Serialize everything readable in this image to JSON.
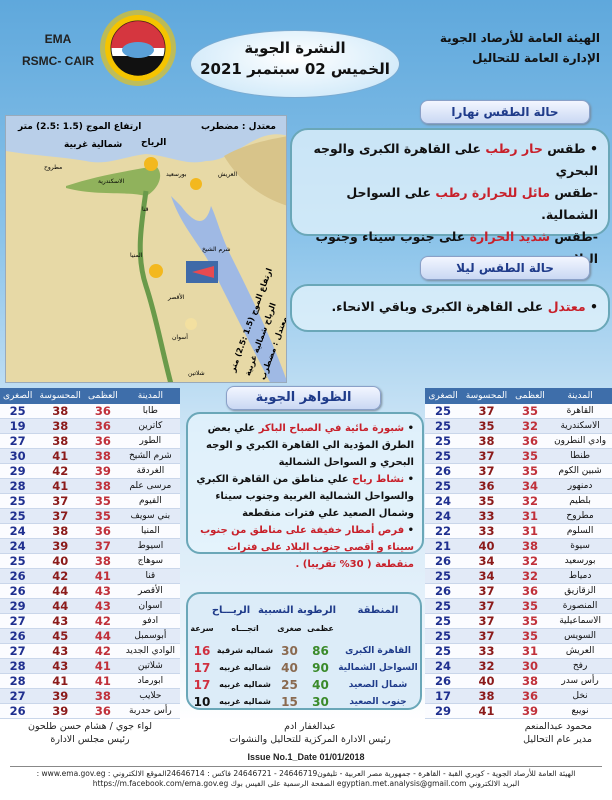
{
  "header": {
    "org_line1": "الهيئة العامة للأرصاد الجوية",
    "org_line2": "الإدارة العامة للتحاليل",
    "title": "النشرة الجوية",
    "date": "الخميس 02 سبتمبر 2021",
    "ema": "EMA",
    "rsmc": "RSMC- CAIR",
    "logo": "EMA"
  },
  "map": {
    "med_sea_state": "معتدل : مضطرب",
    "med_wave": "ارتفاع الموج (1.5 :2.5) متر",
    "med_wind_label": "الرياح",
    "med_wind_dir": "شمالية غربية",
    "red_sea_state": "معتدل : مضطرب",
    "red_sea_wind": "الرياح شمالية غربية",
    "red_sea_wave": "ارتفاع الموج (1.5 :2.5) متر",
    "cities": [
      "مطروح",
      "الاسكندرية",
      "بورسعيد",
      "العريش",
      "قنا",
      "المنيا",
      "الأقصر",
      "أسوان",
      "شرم الشيخ",
      "شلاتين"
    ]
  },
  "day": {
    "title": "حالة الطقس نهارا",
    "items": [
      {
        "pre": "• طقس ",
        "hl": "حار رطب",
        "post": " على القاهرة الكبرى والوجه البحري"
      },
      {
        "pre": "-طقس ",
        "hl": "مائل للحرارة رطب",
        "post": " على السواحل الشمالية."
      },
      {
        "pre": "-طقس ",
        "hl": "شديد الحرارة",
        "post": " على جنوب سيناء وجنوب البلاد."
      }
    ]
  },
  "night": {
    "title": "حالة الطقس ليلا",
    "items": [
      {
        "pre": "• ",
        "hl": "معتدل",
        "post": " على القاهرة الكبرى وباقي الانحاء."
      }
    ]
  },
  "phenomena": {
    "title": "الظواهر الجوية",
    "items": [
      {
        "pre": "• ",
        "hl": "شبورة مائية  في الصباح الباكر",
        "post": " علي بعض الطرق المؤدية الي القاهرة الكبري و الوجه البحري و السواحل الشمالية"
      },
      {
        "pre": "• ",
        "hl": "نشاط رياح",
        "post": " علي مناطق من القاهرة الكبري والسواحل الشمالية الغربية وجنوب سيناء وشمال الصعيد علي فترات منقطعة"
      },
      {
        "pre": "• ",
        "hl": "فرص أمطار خفيفة على مناطق من جنوب سيناء و أقصى جنوب البلاد على فترات منقطعة ( 30% تقريبا) .",
        "post": ""
      }
    ]
  },
  "table_headers": {
    "city": "المدينة",
    "max": "العظمى",
    "feels": "المحسوسة",
    "min": "الصغرى"
  },
  "left_table": [
    [
      "طابا",
      36,
      38,
      25
    ],
    [
      "كاترين",
      36,
      38,
      19
    ],
    [
      "الطور",
      36,
      38,
      27
    ],
    [
      "شرم الشيخ",
      38,
      41,
      30
    ],
    [
      "الغردقة",
      39,
      42,
      29
    ],
    [
      "مرسى علم",
      38,
      41,
      28
    ],
    [
      "الفيوم",
      35,
      37,
      25
    ],
    [
      "بني سويف",
      35,
      37,
      25
    ],
    [
      "المنيا",
      36,
      38,
      24
    ],
    [
      "اسيوط",
      37,
      39,
      24
    ],
    [
      "سوهاج",
      38,
      40,
      25
    ],
    [
      "قنا",
      41,
      42,
      26
    ],
    [
      "الأقصر",
      43,
      44,
      26
    ],
    [
      "اسوان",
      43,
      44,
      29
    ],
    [
      "ادفو",
      42,
      43,
      27
    ],
    [
      "أبوسمبل",
      44,
      45,
      26
    ],
    [
      "الوادي الجديد",
      42,
      43,
      27
    ],
    [
      "شلاتين",
      41,
      43,
      28
    ],
    [
      "ابورماد",
      41,
      41,
      28
    ],
    [
      "حلايب",
      38,
      39,
      27
    ],
    [
      "رأس حدربة",
      36,
      39,
      26
    ]
  ],
  "right_table": [
    [
      "القاهرة",
      35,
      37,
      25
    ],
    [
      "الاسكندرية",
      32,
      35,
      25
    ],
    [
      "وادي النطرون",
      36,
      38,
      25
    ],
    [
      "طنطا",
      35,
      37,
      25
    ],
    [
      "شبين الكوم",
      35,
      37,
      26
    ],
    [
      "دمنهور",
      34,
      36,
      25
    ],
    [
      "بلطيم",
      32,
      35,
      24
    ],
    [
      "مطروح",
      31,
      33,
      24
    ],
    [
      "السلوم",
      31,
      33,
      22
    ],
    [
      "سيوة",
      38,
      40,
      21
    ],
    [
      "بورسعيد",
      32,
      34,
      26
    ],
    [
      "دمياط",
      32,
      34,
      25
    ],
    [
      "الزقازيق",
      36,
      37,
      26
    ],
    [
      "المنصورة",
      35,
      37,
      25
    ],
    [
      "الاسماعيلية",
      35,
      37,
      25
    ],
    [
      "السويس",
      35,
      37,
      25
    ],
    [
      "العريش",
      31,
      33,
      25
    ],
    [
      "رفح",
      30,
      32,
      24
    ],
    [
      "رأس سدر",
      38,
      40,
      26
    ],
    [
      "نخل",
      36,
      38,
      17
    ],
    [
      "نويبع",
      39,
      41,
      29
    ]
  ],
  "winds": {
    "h_region": "المنطقة",
    "h_humidity": "الرطوبة النسبية",
    "h_wind": "الريـــاح",
    "h_max": "عظمى",
    "h_min": "صغرى",
    "h_dir": "اتجـــاه",
    "h_speed": "سرعة",
    "rows": [
      [
        "القاهرة الكبرى",
        86,
        30,
        "شماليه شرقية",
        16
      ],
      [
        "السواحل الشمالية",
        90,
        40,
        "شماليه غربيه",
        17
      ],
      [
        "شمال الصعيد",
        40,
        25,
        "شماليه غربيه",
        17
      ],
      [
        "جنوب الصعيد",
        30,
        15,
        "شماليه غربيه",
        10
      ]
    ]
  },
  "signatures": {
    "right_name": "محمود عبدالمنعم",
    "right_title": "مدير عام التحاليل",
    "mid_name": "عبدالغفار ادم",
    "mid_title": "رئيس الادارة المركزية للتحاليل والنشوات",
    "left_name": "لواء جوي / هشام حسن طلحون",
    "left_title": "رئيس مجلس الادارة"
  },
  "footer": {
    "issue": "Issue No.1_Date 01/01/2018",
    "address": "الهيئة العامة للأرصاد الجوية - كوبري القبة - القاهرة - جمهورية مصر العربية - تليفون24646719 - 24646721 فاكس : 24646714الموقع الالكتروني : www.ema.gov.eg :",
    "contact": "البريد الالكتروني egyptian.met.analysis@gmail.com  الصفحة الرسمية على الفيس بوك https://m.facebook.com/ema.gov.eg"
  },
  "colors": {
    "max": "#c0303a",
    "feels": "#8b1a1a",
    "min": "#1f2f8f",
    "header": "#3e6eaa",
    "hum_max": "#3a8a2a",
    "hum_min": "#8a6a50",
    "speed": "#d03040"
  }
}
